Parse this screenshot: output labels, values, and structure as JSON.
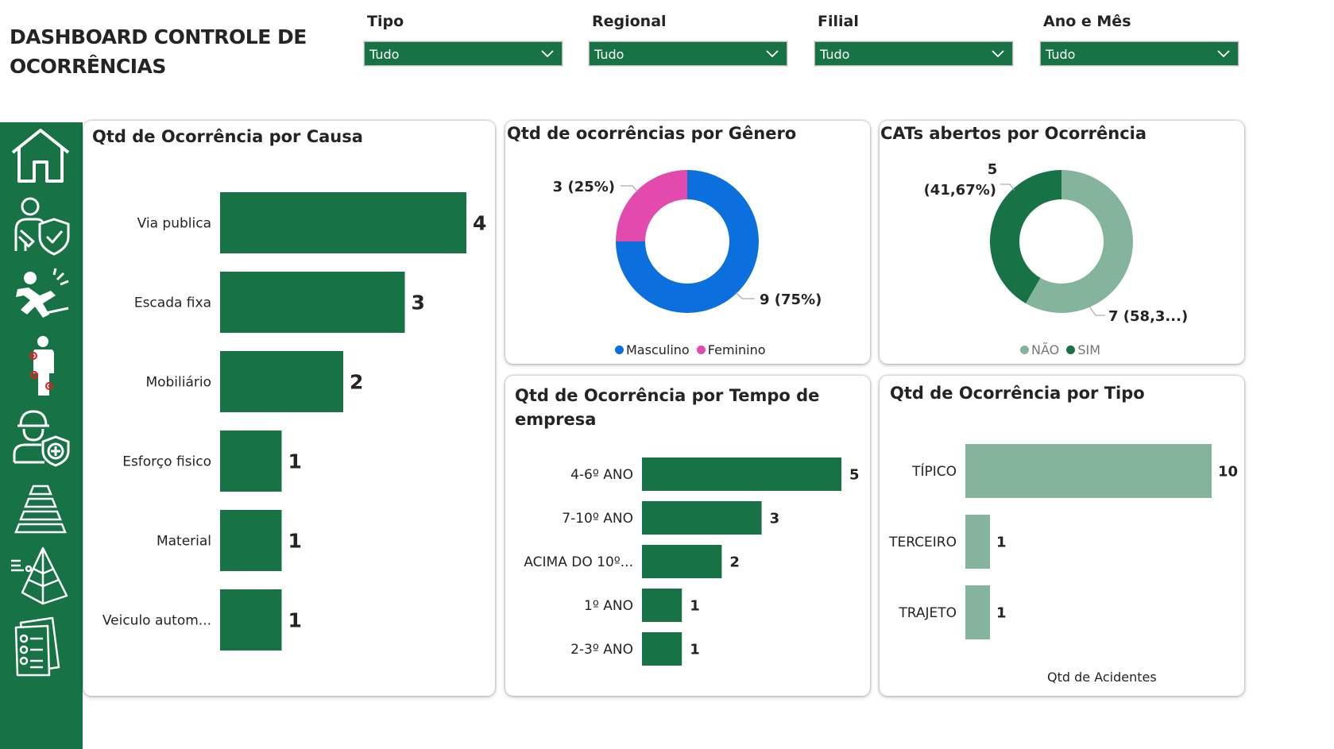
{
  "header": {
    "title": "DASHBOARD CONTROLE DE OCORRÊNCIAS"
  },
  "filters": [
    {
      "label": "Tipo",
      "value": "Tudo"
    },
    {
      "label": "Regional",
      "value": "Tudo"
    },
    {
      "label": "Filial",
      "value": "Tudo"
    },
    {
      "label": "Ano e Mês",
      "value": "Tudo"
    }
  ],
  "sidebar": {
    "icons": [
      "home-icon",
      "injury-shield-icon",
      "fall-accident-icon",
      "body-injury-icon",
      "health-worker-icon",
      "pyramid-stairs-icon",
      "pyramid-chart-icon",
      "checklist-icon"
    ]
  },
  "colors": {
    "brand_green": "#177245",
    "light_green": "#84b59c",
    "masculino": "#0b6fdd",
    "feminino": "#e24aad"
  },
  "chart_data": [
    {
      "type": "bar",
      "orientation": "horizontal",
      "title": "Qtd de Ocorrência por Causa",
      "categories": [
        "Via publica",
        "Escada fixa",
        "Mobiliário",
        "Esforço fisico",
        "Material",
        "Veiculo autom..."
      ],
      "values": [
        4,
        3,
        2,
        1,
        1,
        1
      ],
      "data_labels": [
        "4",
        "3",
        "2",
        "1",
        "1",
        "1"
      ],
      "color": "#177245"
    },
    {
      "type": "pie",
      "style": "donut",
      "title": "Qtd de ocorrências por Gênero",
      "series": [
        {
          "name": "Masculino",
          "value": 9,
          "label": "9 (75%)",
          "color": "#0b6fdd"
        },
        {
          "name": "Feminino",
          "value": 3,
          "label": "3 (25%)",
          "color": "#e24aad"
        }
      ],
      "legend": "bottom"
    },
    {
      "type": "pie",
      "style": "donut",
      "title": "CATs abertos por Ocorrência",
      "series": [
        {
          "name": "NÃO",
          "value": 7,
          "label": "7 (58,3...)",
          "color": "#84b59c"
        },
        {
          "name": "SIM",
          "value": 5,
          "label_line1": "5",
          "label_line2": "(41,67%)",
          "color": "#177245"
        }
      ],
      "legend": "bottom"
    },
    {
      "type": "bar",
      "orientation": "horizontal",
      "title": "Qtd de Ocorrência por Tempo de empresa",
      "title_line1": "Qtd de Ocorrência por Tempo de",
      "title_line2": "empresa",
      "categories": [
        "4-6º ANO",
        "7-10º ANO",
        "ACIMA DO 10º...",
        "1º ANO",
        "2-3º ANO"
      ],
      "values": [
        5,
        3,
        2,
        1,
        1
      ],
      "data_labels": [
        "5",
        "3",
        "2",
        "1",
        "1"
      ],
      "color": "#177245"
    },
    {
      "type": "bar",
      "orientation": "horizontal",
      "title": "Qtd de Ocorrência por Tipo",
      "categories": [
        "TÍPICO",
        "TERCEIRO",
        "TRAJETO"
      ],
      "values": [
        10,
        1,
        1
      ],
      "data_labels": [
        "10",
        "1",
        "1"
      ],
      "xlabel": "Qtd de Acidentes",
      "color": "#84b59c"
    }
  ]
}
